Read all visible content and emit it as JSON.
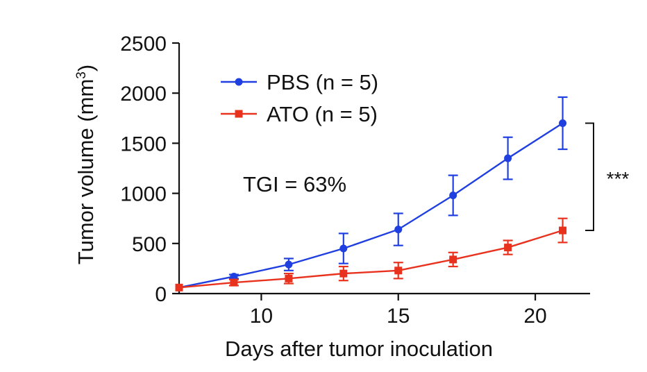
{
  "chart_data": {
    "type": "line",
    "title": "",
    "xlabel": "Days after tumor inoculation",
    "ylabel_main": "Tumor volume (mm",
    "ylabel_sup": "3",
    "ylabel_close": ")",
    "xlim": [
      7,
      22
    ],
    "ylim": [
      0,
      2500
    ],
    "xticks": [
      10,
      15,
      20
    ],
    "yticks": [
      0,
      500,
      1000,
      1500,
      2000,
      2500
    ],
    "grid": false,
    "legend_position": "top-left",
    "x": [
      7,
      9,
      11,
      13,
      15,
      17,
      19,
      21
    ],
    "series": [
      {
        "name": "PBS (n = 5)",
        "color": "#1f3fe0",
        "marker": "circle",
        "values": [
          60,
          170,
          290,
          450,
          640,
          980,
          1350,
          1700
        ],
        "errors": [
          0,
          20,
          60,
          150,
          160,
          200,
          210,
          260
        ]
      },
      {
        "name": "ATO (n = 5)",
        "color": "#e8321e",
        "marker": "square",
        "values": [
          60,
          110,
          150,
          200,
          230,
          340,
          460,
          630
        ],
        "errors": [
          0,
          30,
          50,
          70,
          80,
          70,
          70,
          120
        ]
      }
    ],
    "annotations": [
      {
        "text": "TGI = 63%"
      }
    ],
    "significance": "***"
  }
}
